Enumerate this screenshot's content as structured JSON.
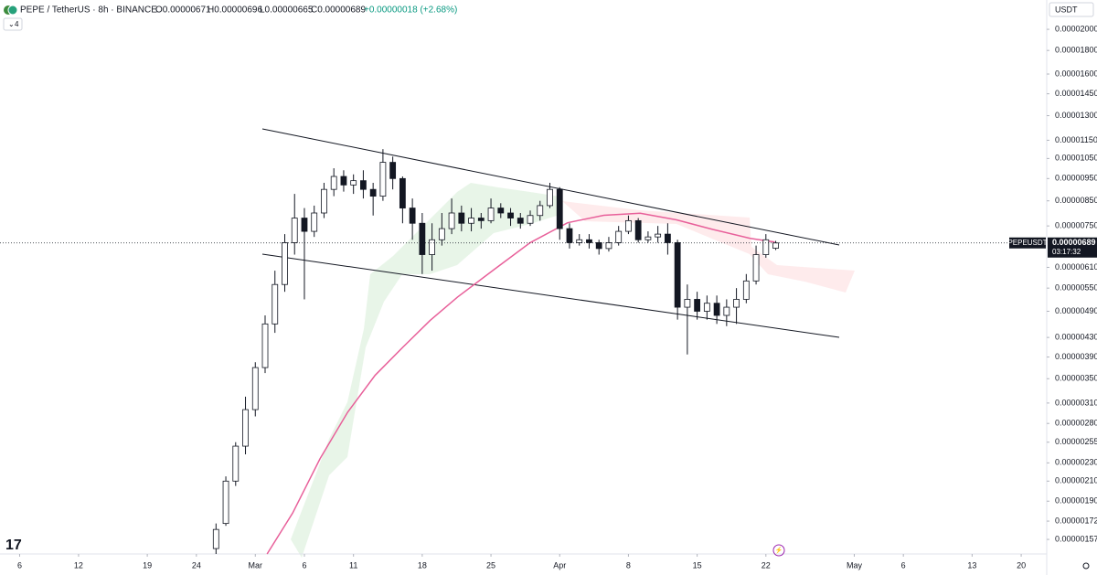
{
  "header": {
    "symbol": "PEPE / TetherUS · 8h · BINANCE",
    "open": "O0.00000671",
    "high": "H0.00000696",
    "low": "L0.00000665",
    "close": "C0.00000689",
    "change": "+0.00000018 (+2.68%)",
    "indicators": "4"
  },
  "chart_data": {
    "type": "candlestick",
    "currency": "USDT",
    "symbol_tag": "PEPEUSDT",
    "countdown": "03:17:32",
    "last_price": 6.89e-06,
    "log_scale": true,
    "grid": false,
    "up_color": "#ffffff",
    "down_color": "#131722",
    "ylim": [
      1.46e-06,
      2.315e-05
    ],
    "yticks": [
      {
        "value": 2e-05,
        "label": "0.00002000"
      },
      {
        "value": 1.8e-05,
        "label": "0.00001800"
      },
      {
        "value": 1.6e-05,
        "label": "0.00001600"
      },
      {
        "value": 1.45e-05,
        "label": "0.00001450"
      },
      {
        "value": 1.3e-05,
        "label": "0.00001300"
      },
      {
        "value": 1.15e-05,
        "label": "0.00001150"
      },
      {
        "value": 1.05e-05,
        "label": "0.00001050"
      },
      {
        "value": 9.5e-06,
        "label": "0.00000950"
      },
      {
        "value": 8.5e-06,
        "label": "0.00000850"
      },
      {
        "value": 7.5e-06,
        "label": "0.00000750"
      },
      {
        "value": 6.1e-06,
        "label": "0.00000610"
      },
      {
        "value": 5.5e-06,
        "label": "0.00000550"
      },
      {
        "value": 4.9e-06,
        "label": "0.00000490"
      },
      {
        "value": 4.3e-06,
        "label": "0.00000430"
      },
      {
        "value": 3.9e-06,
        "label": "0.00000390"
      },
      {
        "value": 3.5e-06,
        "label": "0.00000350"
      },
      {
        "value": 3.1e-06,
        "label": "0.00000310"
      },
      {
        "value": 2.8e-06,
        "label": "0.00000280"
      },
      {
        "value": 2.55e-06,
        "label": "0.00000255"
      },
      {
        "value": 2.3e-06,
        "label": "0.00000230"
      },
      {
        "value": 2.1e-06,
        "label": "0.00000210"
      },
      {
        "value": 1.9e-06,
        "label": "0.00000190"
      },
      1.72e-06,
      1.57e-06
    ],
    "xlim": [
      -26,
      80.6
    ],
    "xticks": [
      {
        "value": -24,
        "label": "6"
      },
      {
        "value": -18,
        "label": "12"
      },
      {
        "value": -11,
        "label": "19"
      },
      {
        "value": -6,
        "label": "24"
      },
      {
        "value": 0,
        "label": "Mar"
      },
      {
        "value": 5,
        "label": "6"
      },
      {
        "value": 10,
        "label": "11"
      },
      {
        "value": 17,
        "label": "18"
      },
      {
        "value": 24,
        "label": "25"
      },
      {
        "value": 31,
        "label": "Apr"
      },
      {
        "value": 38,
        "label": "8"
      },
      {
        "value": 45,
        "label": "15"
      },
      {
        "value": 52,
        "label": "22"
      },
      {
        "value": 61,
        "label": "May"
      },
      {
        "value": 66,
        "label": "6"
      },
      {
        "value": 73,
        "label": "13"
      },
      {
        "value": 78,
        "label": "20"
      }
    ],
    "x": [
      -4,
      -3,
      -2,
      -1,
      0,
      1,
      2,
      3,
      4,
      5,
      6,
      7,
      8,
      9,
      10,
      11,
      12,
      13,
      14,
      15,
      16,
      17,
      18,
      19,
      20,
      21,
      22,
      23,
      24,
      25,
      26,
      27,
      28,
      29,
      30,
      31,
      32,
      33,
      34,
      35,
      36,
      37,
      38,
      39,
      40,
      41,
      42,
      43,
      44,
      45,
      46,
      47,
      48,
      49,
      50,
      51,
      52,
      53
    ],
    "open": [
      1.5e-06,
      1.7e-06,
      2.1e-06,
      2.5e-06,
      3e-06,
      3.7e-06,
      4.6e-06,
      5.6e-06,
      6.9e-06,
      7.8e-06,
      7.3e-06,
      8e-06,
      9e-06,
      9.6e-06,
      9.2e-06,
      9.4e-06,
      9e-06,
      8.7e-06,
      1.03e-05,
      9.5e-06,
      8.2e-06,
      7.6e-06,
      6.5e-06,
      7e-06,
      7.4e-06,
      8e-06,
      7.6e-06,
      7.8e-06,
      7.7e-06,
      8.2e-06,
      8e-06,
      7.8e-06,
      7.6e-06,
      7.9e-06,
      8.3e-06,
      9e-06,
      7.4e-06,
      6.9e-06,
      7e-06,
      6.9e-06,
      6.7e-06,
      6.9e-06,
      7.3e-06,
      7.7e-06,
      7e-06,
      7.1e-06,
      7.2e-06,
      6.9e-06,
      5e-06,
      5.2e-06,
      4.9e-06,
      5.1e-06,
      4.8e-06,
      5e-06,
      5.2e-06,
      5.7e-06,
      6.5e-06,
      6.71e-06
    ],
    "high": [
      1.7e-06,
      2.15e-06,
      2.55e-06,
      3.2e-06,
      3.8e-06,
      4.8e-06,
      6e-06,
      7.2e-06,
      8.8e-06,
      8.2e-06,
      8.3e-06,
      9.3e-06,
      1e-05,
      9.9e-06,
      9.7e-06,
      9.9e-06,
      9.3e-06,
      1.1e-05,
      1.06e-05,
      9.6e-06,
      8.6e-06,
      8e-06,
      7.6e-06,
      8e-06,
      8.6e-06,
      8.3e-06,
      8.2e-06,
      8e-06,
      8.6e-06,
      8.4e-06,
      8.2e-06,
      8e-06,
      8.1e-06,
      8.5e-06,
      9.3e-06,
      9.1e-06,
      7.6e-06,
      7.2e-06,
      7.2e-06,
      7e-06,
      7.1e-06,
      7.5e-06,
      7.9e-06,
      7.8e-06,
      7.3e-06,
      7.5e-06,
      7.6e-06,
      7e-06,
      5.6e-06,
      5.4e-06,
      5.3e-06,
      5.3e-06,
      5.2e-06,
      5.5e-06,
      5.9e-06,
      6.8e-06,
      7.2e-06,
      6.96e-06
    ],
    "low": [
      1.46e-06,
      1.68e-06,
      2.05e-06,
      2.4e-06,
      2.9e-06,
      3.6e-06,
      4.4e-06,
      5.4e-06,
      6.5e-06,
      5.2e-06,
      7.1e-06,
      7.8e-06,
      8.7e-06,
      8.9e-06,
      8.8e-06,
      8.6e-06,
      7.9e-06,
      8.5e-06,
      9e-06,
      7.6e-06,
      7e-06,
      5.9e-06,
      6e-06,
      6.8e-06,
      7.2e-06,
      7.3e-06,
      7.3e-06,
      7.4e-06,
      7.6e-06,
      7.8e-06,
      7.5e-06,
      7.4e-06,
      7.5e-06,
      7.7e-06,
      8.2e-06,
      7e-06,
      6.7e-06,
      6.8e-06,
      6.7e-06,
      6.5e-06,
      6.6e-06,
      6.8e-06,
      7.2e-06,
      6.9e-06,
      6.9e-06,
      6.9e-06,
      6.5e-06,
      4.7e-06,
      3.95e-06,
      4.7e-06,
      4.7e-06,
      4.6e-06,
      4.55e-06,
      4.6e-06,
      5.1e-06,
      5.6e-06,
      6.4e-06,
      6.65e-06
    ],
    "close": [
      1.65e-06,
      2.1e-06,
      2.5e-06,
      3e-06,
      3.7e-06,
      4.6e-06,
      5.6e-06,
      6.9e-06,
      7.8e-06,
      7.3e-06,
      8e-06,
      9e-06,
      9.6e-06,
      9.2e-06,
      9.4e-06,
      9e-06,
      8.7e-06,
      1.03e-05,
      9.5e-06,
      8.2e-06,
      7.6e-06,
      6.5e-06,
      7e-06,
      7.4e-06,
      8e-06,
      7.6e-06,
      7.8e-06,
      7.7e-06,
      8.2e-06,
      8e-06,
      7.8e-06,
      7.6e-06,
      7.9e-06,
      8.3e-06,
      9e-06,
      7.4e-06,
      6.9e-06,
      7e-06,
      6.9e-06,
      6.7e-06,
      6.9e-06,
      7.3e-06,
      7.7e-06,
      7e-06,
      7.1e-06,
      7.2e-06,
      6.9e-06,
      5e-06,
      5.2e-06,
      4.9e-06,
      5.1e-06,
      4.8e-06,
      5e-06,
      5.2e-06,
      5.7e-06,
      6.5e-06,
      7e-06,
      6.89e-06
    ],
    "overlays": [
      {
        "type": "line",
        "color": "#e8609a",
        "x": [
          1.2,
          3.8,
          6.6,
          9.4,
          12.2,
          15,
          17.8,
          20.6,
          24.3,
          28,
          31.8,
          35.5,
          39.2,
          42.9,
          46.6,
          50.4,
          52.9
        ],
        "values": [
          1.46e-06,
          1.79e-06,
          2.35e-06,
          2.96e-06,
          3.56e-06,
          4.09e-06,
          4.68e-06,
          5.26e-06,
          6.03e-06,
          6.9e-06,
          7.62e-06,
          7.91e-06,
          7.99e-06,
          7.73e-06,
          7.37e-06,
          7.05e-06,
          6.92e-06
        ]
      }
    ]
  }
}
